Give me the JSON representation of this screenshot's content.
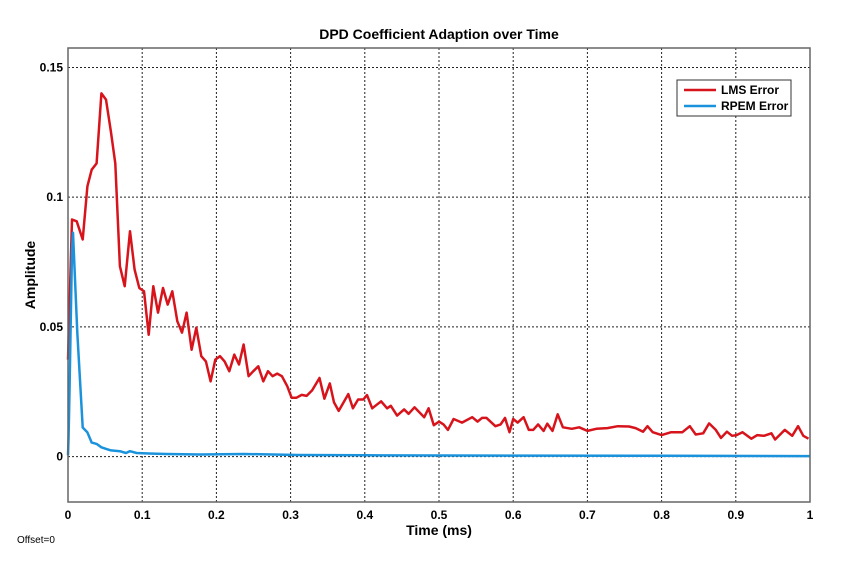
{
  "chart_data": {
    "type": "line",
    "title": "DPD Coefficient Adaption over Time",
    "xlabel": "Time (ms)",
    "ylabel": "Amplitude",
    "xlim": [
      0,
      1
    ],
    "ylim": [
      -0.0175,
      0.1575
    ],
    "xticks": [
      0,
      0.1,
      0.2,
      0.3,
      0.4,
      0.5,
      0.6,
      0.7,
      0.8,
      0.9,
      1
    ],
    "xtick_labels": [
      "0",
      "0.1",
      "0.2",
      "0.3",
      "0.4",
      "0.5",
      "0.6",
      "0.7",
      "0.8",
      "0.9",
      "1"
    ],
    "yticks": [
      0,
      0.05,
      0.1,
      0.15
    ],
    "ytick_labels": [
      "0",
      "0.05",
      "0.1",
      "0.15"
    ],
    "grid": true,
    "grid_style": "dotted",
    "legend_position": "top-right",
    "annotation": "Offset=0",
    "series": [
      {
        "name": "LMS Error",
        "color": "#d7141c",
        "x": [
          0,
          0.0054,
          0.0117,
          0.0198,
          0.0261,
          0.032,
          0.0386,
          0.045,
          0.0512,
          0.058,
          0.0638,
          0.07,
          0.0764,
          0.0835,
          0.0898,
          0.0961,
          0.1024,
          0.1087,
          0.115,
          0.1213,
          0.128,
          0.1343,
          0.1406,
          0.1473,
          0.1536,
          0.1599,
          0.1666,
          0.1729,
          0.1797,
          0.1859,
          0.1922,
          0.1985,
          0.2048,
          0.2111,
          0.2174,
          0.2241,
          0.2304,
          0.2367,
          0.2434,
          0.2497,
          0.2565,
          0.2632,
          0.2695,
          0.2757,
          0.282,
          0.2883,
          0.2955,
          0.3013,
          0.308,
          0.315,
          0.3216,
          0.329,
          0.339,
          0.3456,
          0.3528,
          0.3585,
          0.3648,
          0.3777,
          0.384,
          0.391,
          0.398,
          0.403,
          0.41,
          0.422,
          0.43,
          0.435,
          0.4435,
          0.453,
          0.459,
          0.467,
          0.48,
          0.486,
          0.493,
          0.5,
          0.506,
          0.512,
          0.5197,
          0.531,
          0.5447,
          0.552,
          0.558,
          0.564,
          0.576,
          0.583,
          0.589,
          0.595,
          0.6,
          0.606,
          0.614,
          0.621,
          0.627,
          0.6335,
          0.641,
          0.646,
          0.653,
          0.66,
          0.667,
          0.679,
          0.689,
          0.7,
          0.712,
          0.727,
          0.741,
          0.756,
          0.765,
          0.775,
          0.781,
          0.788,
          0.8,
          0.813,
          0.828,
          0.838,
          0.846,
          0.856,
          0.864,
          0.873,
          0.88,
          0.888,
          0.895,
          0.901,
          0.909,
          0.921,
          0.929,
          0.938,
          0.948,
          0.953,
          0.966,
          0.976,
          0.984,
          0.991,
          0.998
        ],
        "values": [
          0.0374,
          0.0914,
          0.0907,
          0.0837,
          0.1042,
          0.1106,
          0.113,
          0.14,
          0.1376,
          0.125,
          0.113,
          0.0734,
          0.0657,
          0.0869,
          0.0721,
          0.065,
          0.0637,
          0.047,
          0.0657,
          0.0555,
          0.065,
          0.0586,
          0.0637,
          0.0522,
          0.0478,
          0.0555,
          0.0412,
          0.0497,
          0.0387,
          0.0367,
          0.029,
          0.0374,
          0.0387,
          0.0367,
          0.0329,
          0.0393,
          0.0355,
          0.0432,
          0.031,
          0.0329,
          0.0348,
          0.029,
          0.0329,
          0.031,
          0.032,
          0.031,
          0.0271,
          0.0227,
          0.0227,
          0.0238,
          0.0234,
          0.0255,
          0.0303,
          0.0223,
          0.0282,
          0.0209,
          0.0176,
          0.0241,
          0.0186,
          0.022,
          0.022,
          0.0237,
          0.0186,
          0.0213,
          0.0186,
          0.0196,
          0.0158,
          0.0182,
          0.0165,
          0.019,
          0.0152,
          0.0186,
          0.0121,
          0.0135,
          0.0124,
          0.0103,
          0.0145,
          0.0131,
          0.0152,
          0.0135,
          0.0149,
          0.0149,
          0.0117,
          0.0124,
          0.0149,
          0.0094,
          0.0145,
          0.0131,
          0.0152,
          0.0103,
          0.0103,
          0.0124,
          0.0099,
          0.0127,
          0.0099,
          0.0163,
          0.0113,
          0.0107,
          0.0113,
          0.0099,
          0.0107,
          0.011,
          0.0117,
          0.0116,
          0.011,
          0.0096,
          0.0117,
          0.0094,
          0.0083,
          0.0094,
          0.0094,
          0.0117,
          0.0085,
          0.009,
          0.0128,
          0.0103,
          0.0072,
          0.0096,
          0.008,
          0.0083,
          0.0094,
          0.0069,
          0.0083,
          0.008,
          0.009,
          0.0066,
          0.0103,
          0.008,
          0.0117,
          0.008,
          0.0069
        ]
      },
      {
        "name": "RPEM Error",
        "color": "#1b93dc",
        "x": [
          0,
          0.0008,
          0.0022,
          0.0054,
          0.0067,
          0.0126,
          0.0198,
          0.026,
          0.032,
          0.0386,
          0.045,
          0.051,
          0.058,
          0.07,
          0.078,
          0.0835,
          0.0925,
          0.1087,
          0.1325,
          0.178,
          0.237,
          0.31,
          0.4,
          0.6,
          0.8,
          1.0
        ],
        "values": [
          0.0005,
          0.0078,
          0.0271,
          0.0798,
          0.0863,
          0.0478,
          0.0112,
          0.0094,
          0.0054,
          0.0049,
          0.0036,
          0.003,
          0.0024,
          0.0021,
          0.0014,
          0.0021,
          0.0014,
          0.0012,
          0.001,
          0.0008,
          0.001,
          0.0006,
          0.0005,
          0.0004,
          0.0003,
          0.0002
        ]
      }
    ]
  }
}
